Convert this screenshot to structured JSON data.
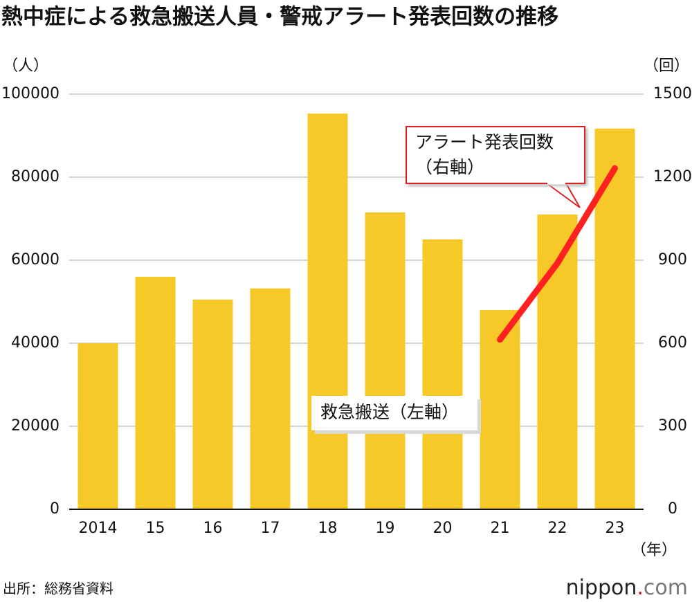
{
  "chart_data": {
    "type": "bar_line",
    "title": "熱中症による救急搬送人員・警戒アラート発表回数の推移",
    "y_label": "（人）",
    "y2_label": "（回）",
    "x_label": "（年）",
    "categories": [
      "2014",
      "15",
      "16",
      "17",
      "18",
      "19",
      "20",
      "21",
      "22",
      "23"
    ],
    "series": [
      {
        "name": "救急搬送（左軸）",
        "type": "bar",
        "color": "#f7c928",
        "values": [
          40000,
          56000,
          50500,
          53200,
          95300,
          71500,
          65000,
          48000,
          71000,
          91700
        ]
      },
      {
        "name": "アラート発表回数（右軸）",
        "type": "line",
        "axis": "y2",
        "color": "#ff2121",
        "values": [
          null,
          null,
          null,
          null,
          null,
          null,
          null,
          613,
          889,
          1232
        ]
      }
    ],
    "ylim": [
      0,
      100000
    ],
    "yticks": [
      0,
      20000,
      40000,
      60000,
      80000,
      100000
    ],
    "y2lim": [
      0,
      1500
    ],
    "y2ticks": [
      0,
      300,
      600,
      900,
      1200,
      1500
    ],
    "grid": true,
    "source": "出所：総務省資料",
    "logo": [
      "nippon",
      ".",
      "com"
    ]
  }
}
